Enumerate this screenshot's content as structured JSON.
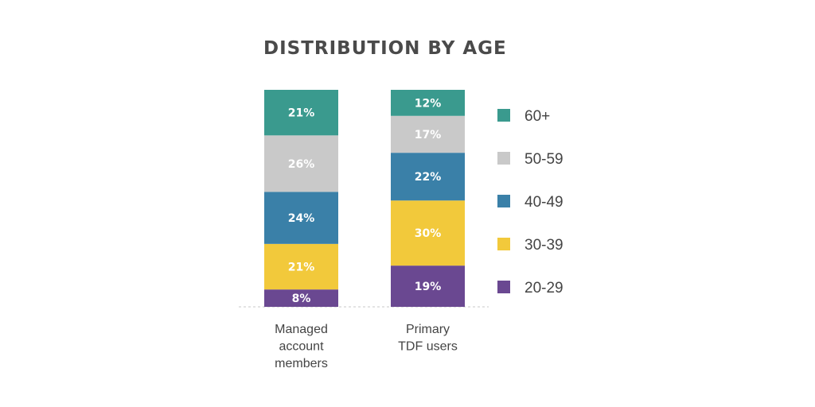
{
  "chart_data": {
    "type": "bar",
    "stacked": true,
    "title": "DISTRIBUTION BY AGE",
    "categories": [
      [
        "Managed",
        "account",
        "members"
      ],
      [
        "Primary",
        "TDF users"
      ]
    ],
    "series": [
      {
        "name": "20-29",
        "color": "#6a4891",
        "values": [
          8,
          19
        ],
        "labels": [
          "8%",
          "19%"
        ]
      },
      {
        "name": "30-39",
        "color": "#f2c93b",
        "values": [
          21,
          30
        ],
        "labels": [
          "21%",
          "30%"
        ]
      },
      {
        "name": "40-49",
        "color": "#3a80a8",
        "values": [
          24,
          22
        ],
        "labels": [
          "24%",
          "22%"
        ]
      },
      {
        "name": "50-59",
        "color": "#c9c9c9",
        "values": [
          26,
          17
        ],
        "labels": [
          "26%",
          "17%"
        ]
      },
      {
        "name": "60+",
        "color": "#3a9a8e",
        "values": [
          21,
          12
        ],
        "labels": [
          "21%",
          "12%"
        ]
      }
    ],
    "legend_order": [
      "60+",
      "50-59",
      "40-49",
      "30-39",
      "20-29"
    ],
    "legend_position": "right",
    "ylim": [
      0,
      100
    ],
    "grid": false
  }
}
